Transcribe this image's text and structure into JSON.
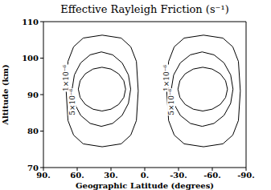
{
  "chart_data": {
    "type": "contour",
    "title": "Effective Rayleigh Friction (s⁻¹)",
    "x_label": "Geographic Latitude (degrees)",
    "y_label": "Altitude (km)",
    "xlim": [
      90,
      -90
    ],
    "xticks": [
      {
        "value": 90,
        "label": "90."
      },
      {
        "value": 60,
        "label": "60."
      },
      {
        "value": 30,
        "label": "30."
      },
      {
        "value": 0,
        "label": "0."
      },
      {
        "value": -30,
        "label": "-30."
      },
      {
        "value": -60,
        "label": "-60."
      },
      {
        "value": -90,
        "label": "-90."
      }
    ],
    "ylim": [
      70,
      110
    ],
    "yticks": [
      70,
      80,
      90,
      100,
      110
    ],
    "color": "#000000",
    "series": [
      {
        "label": "1×10⁻⁶",
        "x": [
          69.8,
          68.2,
          63.2,
          54.7,
          37.8,
          20.9,
          12.4,
          7.4,
          5.8,
          7.4,
          12.4,
          20.9,
          37.8,
          54.7,
          63.2,
          68.2
        ],
        "y": [
          91,
          99.1,
          103.1,
          105.5,
          106.3,
          105.5,
          103.1,
          99.1,
          91,
          82.9,
          78.9,
          76.5,
          75.7,
          76.5,
          78.9,
          82.9
        ]
      },
      {
        "label": "5×10⁻⁶",
        "x": [
          64.5,
          62.5,
          56.9,
          48.5,
          38.5,
          28.5,
          20.1,
          14.5,
          12.5,
          14.5,
          20.1,
          28.5,
          38.5,
          48.5,
          56.9,
          62.5
        ],
        "y": [
          91.5,
          95.4,
          98.7,
          100.9,
          101.7,
          100.9,
          98.7,
          95.4,
          91.5,
          87.6,
          84.3,
          82.1,
          81.3,
          82.1,
          84.3,
          87.6
        ]
      },
      {
        "x": [
          59,
          57.4,
          52.8,
          46.0,
          38,
          30.0,
          23.2,
          18.6,
          17,
          18.6,
          23.2,
          30.0,
          38,
          46.0,
          52.8,
          57.4
        ],
        "y": [
          91.5,
          93.8,
          95.7,
          97.0,
          97.5,
          97.0,
          95.7,
          93.8,
          91.5,
          89.2,
          87.3,
          86.0,
          85.5,
          86.0,
          87.3,
          89.2
        ]
      },
      {
        "label": "1×10⁻⁶",
        "x": [
          -19.5,
          -21.2,
          -26.2,
          -35.0,
          -52.2,
          -69.4,
          -78.2,
          -83.2,
          -84.9,
          -83.2,
          -78.2,
          -69.4,
          -52.2,
          -35.0,
          -26.2,
          -21.2
        ],
        "y": [
          91,
          99.1,
          103.1,
          105.5,
          106.3,
          105.5,
          103.1,
          99.1,
          91,
          82.9,
          78.9,
          76.5,
          75.7,
          76.5,
          78.9,
          82.9
        ]
      },
      {
        "label": "5×10⁻⁶",
        "x": [
          -23.6,
          -25.7,
          -31.6,
          -40.5,
          -51,
          -61.5,
          -70.4,
          -76.3,
          -78.4,
          -76.3,
          -70.4,
          -61.5,
          -51,
          -40.5,
          -31.6,
          -25.7
        ],
        "y": [
          91.5,
          95.4,
          98.7,
          100.9,
          101.7,
          100.9,
          98.7,
          95.4,
          91.5,
          87.6,
          84.3,
          82.1,
          81.3,
          82.1,
          84.3,
          87.6
        ]
      },
      {
        "x": [
          -29.5,
          -31.2,
          -35.9,
          -43.1,
          -51.5,
          -59.9,
          -67.1,
          -71.8,
          -73.5,
          -71.8,
          -67.1,
          -59.9,
          -51.5,
          -43.1,
          -35.9,
          -31.2
        ],
        "y": [
          91.5,
          93.8,
          95.7,
          97.0,
          97.5,
          97.0,
          95.7,
          93.8,
          91.5,
          89.2,
          87.3,
          86.0,
          85.5,
          86.0,
          87.3,
          89.2
        ]
      }
    ]
  }
}
